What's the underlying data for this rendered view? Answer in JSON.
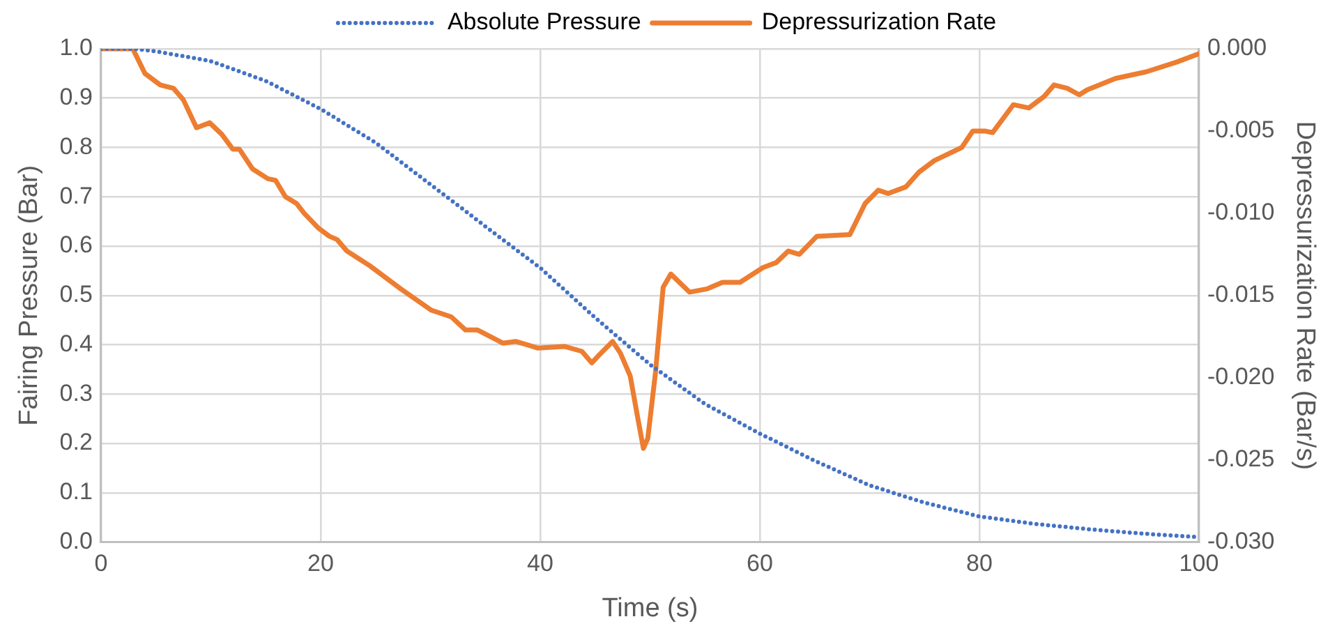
{
  "chart_data": {
    "type": "line",
    "xlabel": "Time (s)",
    "ylabel": "Fairing Pressure (Bar)",
    "y2label": "Depressurization Rate (Bar/s)",
    "xlim": [
      0,
      100
    ],
    "xticks": [
      0,
      20,
      40,
      60,
      80,
      100
    ],
    "ylim": [
      0,
      1
    ],
    "yticks": [
      {
        "value": 0,
        "label": "0.0"
      },
      0.1,
      0.2,
      0.3,
      0.4,
      0.5,
      0.6,
      0.7,
      0.8,
      0.9,
      {
        "value": 1,
        "label": "1.0"
      }
    ],
    "y2lim": [
      -0.03,
      0
    ],
    "y2ticks": [
      {
        "value": -0.03,
        "label": "-0.030"
      },
      {
        "value": -0.025,
        "label": "-0.025"
      },
      {
        "value": -0.02,
        "label": "-0.020"
      },
      {
        "value": -0.015,
        "label": "-0.015"
      },
      {
        "value": -0.01,
        "label": "-0.010"
      },
      {
        "value": -0.005,
        "label": "-0.005"
      },
      {
        "value": 0,
        "label": "0.000"
      }
    ],
    "grid": true,
    "legend": "top",
    "marker": "none",
    "series": [
      {
        "name": "Absolute Pressure",
        "color": "#4472c4",
        "line_style": "dotted",
        "x": [
          0,
          3,
          5,
          10,
          15,
          20,
          25,
          30,
          33.2,
          35,
          40,
          45,
          50,
          55,
          60,
          65,
          70,
          75,
          80,
          85,
          90,
          95,
          100
        ],
        "values": [
          1,
          1,
          0.995,
          0.975,
          0.935,
          0.878,
          0.81,
          0.725,
          0.671,
          0.64,
          0.556,
          0.455,
          0.36,
          0.28,
          0.22,
          0.165,
          0.115,
          0.08,
          0.052,
          0.037,
          0.026,
          0.017,
          0.01
        ]
      },
      {
        "name": "Depressurization Rate",
        "color": "#ed7d31",
        "line_style": "solid",
        "axis": "y2",
        "x": [
          0,
          2.9,
          4,
          5.4,
          6.6,
          7.5,
          8.7,
          9.9,
          11,
          12,
          12.6,
          13.8,
          15.2,
          15.9,
          16.8,
          17.8,
          18.5,
          19.8,
          20.8,
          21.5,
          22.4,
          24.5,
          27.3,
          30.1,
          31.9,
          33.2,
          34.3,
          36.6,
          37.8,
          39.8,
          42.2,
          43.8,
          44.7,
          45.4,
          46.6,
          47.3,
          48.2,
          48.9,
          49.4,
          49.8,
          50.5,
          51.2,
          51.9,
          53.6,
          55.2,
          56.6,
          58.2,
          60.3,
          61.5,
          62.6,
          63.6,
          65.2,
          68.2,
          69.6,
          70.8,
          71.7,
          73.3,
          74.5,
          75.9,
          78.4,
          79.4,
          80.5,
          81.2,
          83.1,
          84.5,
          85.9,
          86.8,
          88,
          89.1,
          89.8,
          92.4,
          95.2,
          98,
          100
        ],
        "values": [
          0,
          0,
          -0.0015,
          -0.0022,
          -0.0024,
          -0.0031,
          -0.0048,
          -0.0045,
          -0.0052,
          -0.0061,
          -0.0061,
          -0.0073,
          -0.0079,
          -0.008,
          -0.009,
          -0.0094,
          -0.01,
          -0.0109,
          -0.0114,
          -0.0116,
          -0.0123,
          -0.0132,
          -0.0146,
          -0.0159,
          -0.0163,
          -0.0171,
          -0.0171,
          -0.0179,
          -0.0178,
          -0.0182,
          -0.0181,
          -0.0184,
          -0.0191,
          -0.0186,
          -0.0178,
          -0.0185,
          -0.0199,
          -0.0225,
          -0.0243,
          -0.0237,
          -0.0197,
          -0.0145,
          -0.0137,
          -0.0148,
          -0.0146,
          -0.0142,
          -0.0142,
          -0.0133,
          -0.013,
          -0.0123,
          -0.0125,
          -0.0114,
          -0.0113,
          -0.0094,
          -0.0086,
          -0.0088,
          -0.0084,
          -0.0075,
          -0.0068,
          -0.006,
          -0.005,
          -0.005,
          -0.0051,
          -0.0034,
          -0.0036,
          -0.0029,
          -0.0022,
          -0.0024,
          -0.0028,
          -0.0025,
          -0.0018,
          -0.0014,
          -0.0008,
          -0.0003
        ]
      }
    ]
  }
}
